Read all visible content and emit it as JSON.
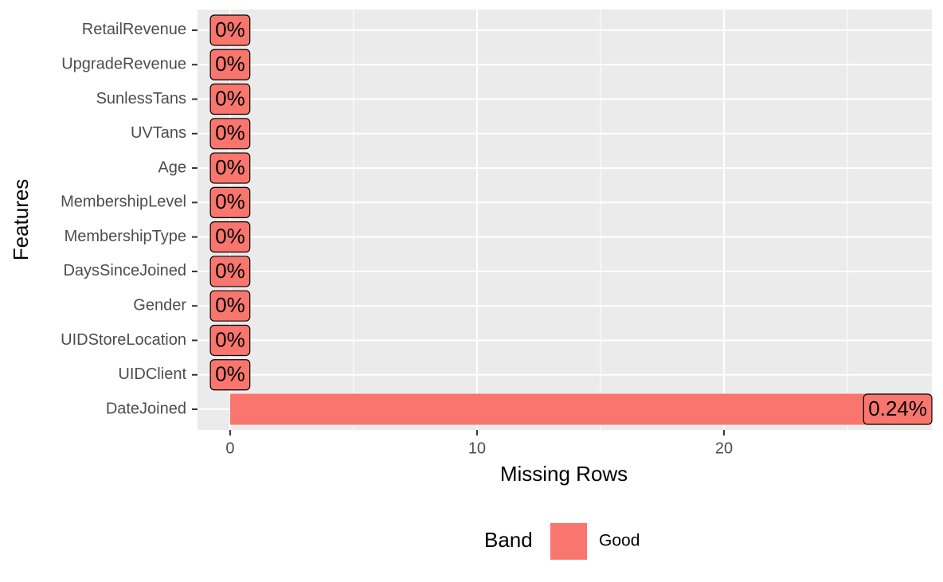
{
  "chart_data": {
    "type": "bar",
    "orientation": "horizontal",
    "x_label": "Missing Rows",
    "y_label": "Features",
    "categories": [
      "RetailRevenue",
      "UpgradeRevenue",
      "SunlessTans",
      "UVTans",
      "Age",
      "MembershipLevel",
      "MembershipType",
      "DaysSinceJoined",
      "Gender",
      "UIDStoreLocation",
      "UIDClient",
      "DateJoined"
    ],
    "series": [
      {
        "name": "Good",
        "color": "#f8766d",
        "values": [
          0,
          0,
          0,
          0,
          0,
          0,
          0,
          0,
          0,
          0,
          0,
          28
        ]
      }
    ],
    "percent_labels": [
      {
        "value": 0,
        "label": "0%"
      },
      {
        "value": 0,
        "label": "0%"
      },
      {
        "value": 0,
        "label": "0%"
      },
      {
        "value": 0,
        "label": "0%"
      },
      {
        "value": 0,
        "label": "0%"
      },
      {
        "value": 0,
        "label": "0%"
      },
      {
        "value": 0,
        "label": "0%"
      },
      {
        "value": 0,
        "label": "0%"
      },
      {
        "value": 0,
        "label": "0%"
      },
      {
        "value": 0,
        "label": "0%"
      },
      {
        "value": 0,
        "label": "0%"
      },
      {
        "value": 0.24,
        "label": "0.24%"
      }
    ],
    "xlim": [
      -1.32,
      28.42
    ],
    "xticks": [
      0,
      10,
      20
    ],
    "x_minor_ticks": [
      5,
      15,
      25
    ],
    "grid": true,
    "legend_title": "Band",
    "legend_position": "bottom"
  }
}
